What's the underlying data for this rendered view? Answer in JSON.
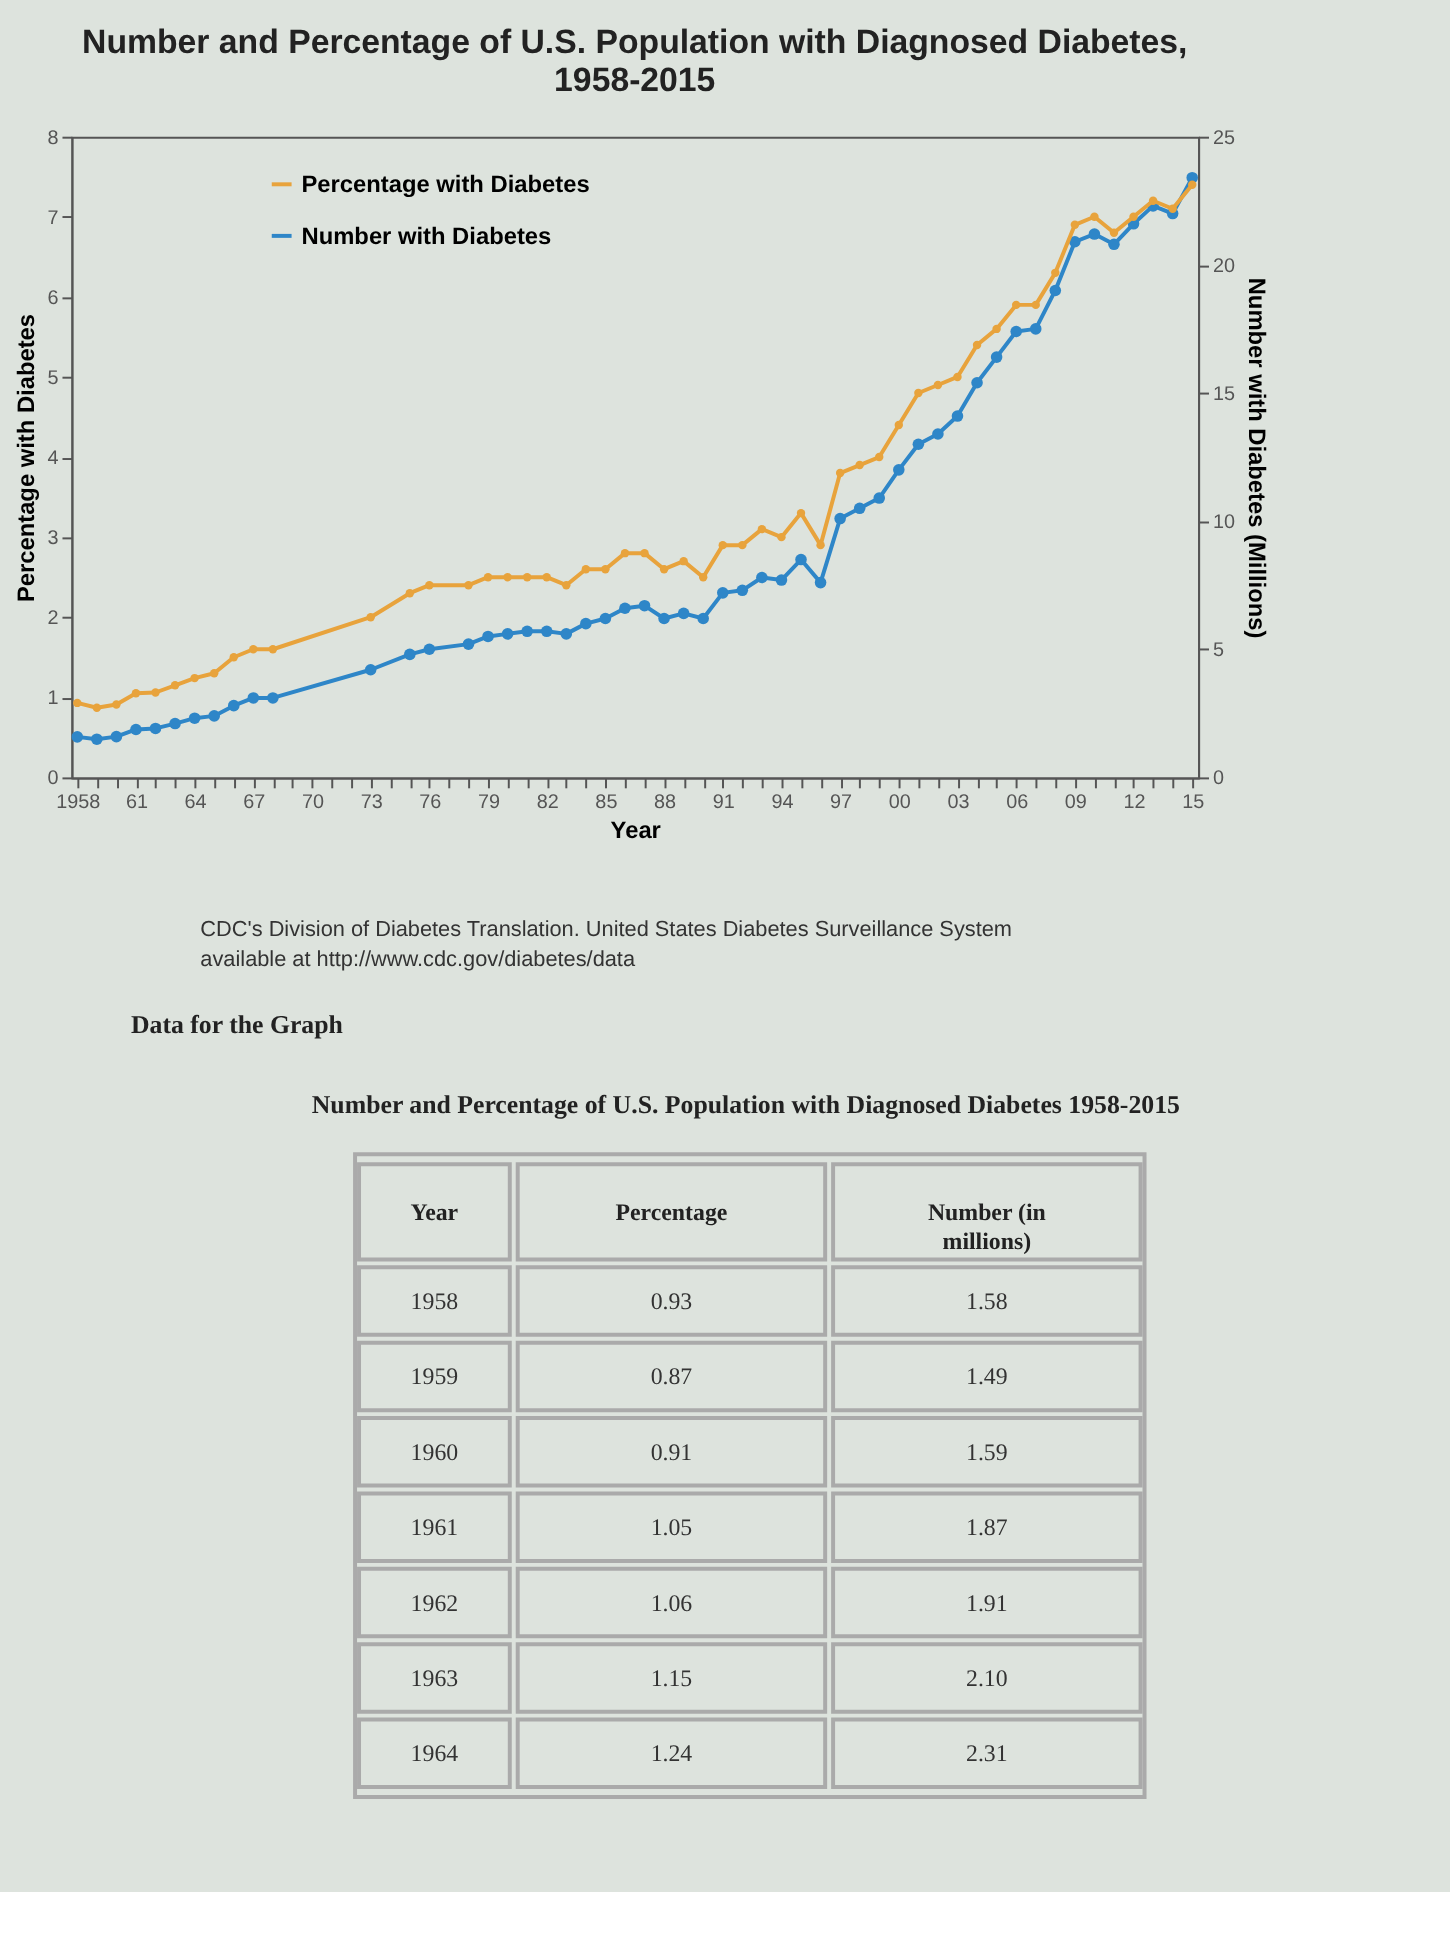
{
  "chart_data": {
    "type": "line",
    "title": "Number and Percentage of U.S. Population with Diagnosed Diabetes, 1958-2015",
    "xlabel": "Year",
    "ylabel": "Percentage with Diabetes",
    "y2label": "Number with Diabetes (Millions)",
    "x": [
      1958,
      1959,
      1960,
      1961,
      1962,
      1963,
      1964,
      1965,
      1966,
      1967,
      1968,
      1973,
      1975,
      1976,
      1978,
      1979,
      1980,
      1981,
      1982,
      1983,
      1984,
      1985,
      1986,
      1987,
      1988,
      1989,
      1990,
      1991,
      1992,
      1993,
      1994,
      1995,
      1996,
      1997,
      1998,
      1999,
      2000,
      2001,
      2002,
      2003,
      2004,
      2005,
      2006,
      2007,
      2008,
      2009,
      2010,
      2011,
      2012,
      2013,
      2014,
      2015
    ],
    "series": [
      {
        "name": "Percentage with Diabetes",
        "color": "#e8a33c",
        "values": [
          0.93,
          0.87,
          0.91,
          1.05,
          1.06,
          1.15,
          1.24,
          1.3,
          1.5,
          1.6,
          1.6,
          2.0,
          2.3,
          2.4,
          2.4,
          2.5,
          2.5,
          2.5,
          2.5,
          2.4,
          2.6,
          2.6,
          2.8,
          2.8,
          2.6,
          2.7,
          2.5,
          2.9,
          2.9,
          3.1,
          3.0,
          3.3,
          2.9,
          3.8,
          3.9,
          4.0,
          4.4,
          4.8,
          4.9,
          5.0,
          5.4,
          5.6,
          5.9,
          5.9,
          6.3,
          6.9,
          7.0,
          6.8,
          7.0,
          7.2,
          7.1,
          7.4
        ]
      },
      {
        "name": "Number with Diabetes",
        "color": "#2e86c8",
        "axis": "y2",
        "values": [
          1.58,
          1.49,
          1.59,
          1.87,
          1.91,
          2.1,
          2.31,
          2.4,
          2.8,
          3.1,
          3.1,
          4.2,
          4.8,
          5.0,
          5.2,
          5.5,
          5.6,
          5.7,
          5.7,
          5.6,
          6.0,
          6.2,
          6.6,
          6.7,
          6.2,
          6.4,
          6.2,
          7.2,
          7.3,
          7.8,
          7.7,
          8.5,
          7.6,
          10.1,
          10.5,
          10.9,
          12.0,
          13.0,
          13.4,
          14.1,
          15.4,
          16.4,
          17.4,
          17.5,
          19.0,
          20.9,
          21.2,
          20.8,
          21.6,
          22.3,
          22.0,
          23.4
        ]
      }
    ],
    "xlim": [
      1957.7,
      2015.3
    ],
    "xticks": [
      {
        "value": 1958,
        "label": "1958"
      },
      {
        "value": 1959,
        "label": null
      },
      {
        "value": 1960,
        "label": null
      },
      {
        "value": 1961,
        "label": "61"
      },
      {
        "value": 1962,
        "label": null
      },
      {
        "value": 1963,
        "label": null
      },
      {
        "value": 1964,
        "label": "64"
      },
      {
        "value": 1965,
        "label": null
      },
      {
        "value": 1966,
        "label": null
      },
      {
        "value": 1967,
        "label": "67"
      },
      {
        "value": 1968,
        "label": null
      },
      {
        "value": 1969,
        "label": null
      },
      {
        "value": 1970,
        "label": "70"
      },
      {
        "value": 1971,
        "label": null
      },
      {
        "value": 1972,
        "label": null
      },
      {
        "value": 1973,
        "label": "73"
      },
      {
        "value": 1974,
        "label": null
      },
      {
        "value": 1975,
        "label": null
      },
      {
        "value": 1976,
        "label": "76"
      },
      {
        "value": 1977,
        "label": null
      },
      {
        "value": 1978,
        "label": null
      },
      {
        "value": 1979,
        "label": "79"
      },
      {
        "value": 1980,
        "label": null
      },
      {
        "value": 1981,
        "label": null
      },
      {
        "value": 1982,
        "label": "82"
      },
      {
        "value": 1983,
        "label": null
      },
      {
        "value": 1984,
        "label": null
      },
      {
        "value": 1985,
        "label": "85"
      },
      {
        "value": 1986,
        "label": null
      },
      {
        "value": 1987,
        "label": null
      },
      {
        "value": 1988,
        "label": "88"
      },
      {
        "value": 1989,
        "label": null
      },
      {
        "value": 1990,
        "label": null
      },
      {
        "value": 1991,
        "label": "91"
      },
      {
        "value": 1992,
        "label": null
      },
      {
        "value": 1993,
        "label": null
      },
      {
        "value": 1994,
        "label": "94"
      },
      {
        "value": 1995,
        "label": null
      },
      {
        "value": 1996,
        "label": null
      },
      {
        "value": 1997,
        "label": "97"
      },
      {
        "value": 1998,
        "label": null
      },
      {
        "value": 1999,
        "label": null
      },
      {
        "value": 2000,
        "label": "00"
      },
      {
        "value": 2001,
        "label": null
      },
      {
        "value": 2002,
        "label": null
      },
      {
        "value": 2003,
        "label": "03"
      },
      {
        "value": 2004,
        "label": null
      },
      {
        "value": 2005,
        "label": null
      },
      {
        "value": 2006,
        "label": "06"
      },
      {
        "value": 2007,
        "label": null
      },
      {
        "value": 2008,
        "label": null
      },
      {
        "value": 2009,
        "label": "09"
      },
      {
        "value": 2010,
        "label": null
      },
      {
        "value": 2011,
        "label": null
      },
      {
        "value": 2012,
        "label": "12"
      },
      {
        "value": 2013,
        "label": null
      },
      {
        "value": 2014,
        "label": null
      },
      {
        "value": 2015,
        "label": "15"
      }
    ],
    "ylim": [
      0,
      8
    ],
    "yticks": [
      0,
      1,
      2,
      3,
      4,
      5,
      6,
      7,
      8
    ],
    "y2lim": [
      0,
      25
    ],
    "y2ticks": [
      0,
      5,
      10,
      15,
      20,
      25
    ],
    "legend": "top left",
    "marker": "circle",
    "line_style": "solid",
    "annotations": [
      "CDC's Division of Diabetes Translation. United States Diabetes Surveillance System available at http://www.cdc.gov/diabetes/data",
      "Data for the Graph",
      "Number and Percentage of U.S. Population with Diagnosed Diabetes 1958-2015",
      "Year",
      "Percentage",
      "Number (in millions)",
      "1958",
      "0.93",
      "1.58",
      "1959",
      "0.87",
      "1.49",
      "1960",
      "0.91",
      "1.59",
      "1961",
      "1.05",
      "1.87",
      "1962",
      "1.06",
      "1.91",
      "1963",
      "1.15",
      "2.10",
      "1964",
      "1.24",
      "2.31"
    ]
  }
}
